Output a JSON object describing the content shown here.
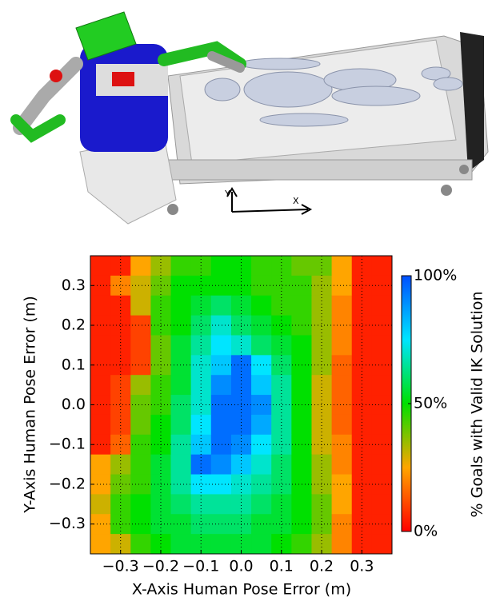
{
  "scene": {
    "x_axis": "X",
    "y_axis": "Y"
  },
  "chart_data": {
    "type": "heatmap",
    "xlabel": "X-Axis Human Pose Error (m)",
    "ylabel": "Y-Axis Human Pose Error (m)",
    "x": [
      -0.35,
      -0.3,
      -0.25,
      -0.2,
      -0.15,
      -0.1,
      -0.05,
      0,
      0.05,
      0.1,
      0.15,
      0.2,
      0.25,
      0.3,
      0.35
    ],
    "y": [
      0.35,
      0.3,
      0.25,
      0.2,
      0.15,
      0.1,
      0.05,
      0,
      -0.05,
      -0.1,
      -0.15,
      -0.2,
      -0.25,
      -0.3,
      -0.35
    ],
    "z": [
      [
        5,
        5,
        25,
        35,
        45,
        45,
        50,
        50,
        45,
        45,
        40,
        40,
        25,
        5,
        5
      ],
      [
        5,
        20,
        30,
        40,
        50,
        50,
        50,
        50,
        45,
        45,
        45,
        35,
        25,
        5,
        5
      ],
      [
        5,
        5,
        30,
        45,
        50,
        55,
        60,
        55,
        50,
        45,
        45,
        35,
        20,
        5,
        5
      ],
      [
        5,
        5,
        10,
        45,
        50,
        60,
        70,
        60,
        55,
        50,
        45,
        35,
        20,
        5,
        5
      ],
      [
        5,
        5,
        10,
        40,
        55,
        65,
        75,
        70,
        60,
        55,
        50,
        35,
        20,
        5,
        5
      ],
      [
        5,
        5,
        10,
        40,
        55,
        70,
        80,
        95,
        75,
        60,
        50,
        35,
        15,
        5,
        5
      ],
      [
        5,
        10,
        35,
        45,
        55,
        70,
        90,
        95,
        80,
        65,
        50,
        30,
        15,
        5,
        5
      ],
      [
        5,
        10,
        40,
        45,
        60,
        70,
        95,
        95,
        90,
        65,
        50,
        30,
        15,
        5,
        5
      ],
      [
        5,
        10,
        40,
        50,
        60,
        75,
        95,
        95,
        85,
        65,
        50,
        30,
        15,
        5,
        5
      ],
      [
        5,
        15,
        45,
        50,
        65,
        80,
        95,
        90,
        75,
        65,
        50,
        30,
        20,
        5,
        5
      ],
      [
        25,
        35,
        45,
        55,
        65,
        95,
        90,
        80,
        70,
        60,
        50,
        35,
        20,
        5,
        5
      ],
      [
        25,
        40,
        45,
        55,
        65,
        75,
        75,
        70,
        65,
        60,
        50,
        35,
        25,
        5,
        5
      ],
      [
        30,
        45,
        50,
        55,
        60,
        65,
        65,
        65,
        60,
        55,
        50,
        40,
        25,
        5,
        5
      ],
      [
        25,
        45,
        50,
        55,
        55,
        60,
        60,
        60,
        55,
        55,
        50,
        40,
        20,
        5,
        5
      ],
      [
        25,
        30,
        45,
        50,
        55,
        55,
        55,
        55,
        55,
        50,
        45,
        35,
        20,
        5,
        5
      ]
    ],
    "xlim": [
      -0.375,
      0.375
    ],
    "ylim": [
      -0.375,
      0.375
    ],
    "xticks": [
      {
        "value": -0.3,
        "label": "−0.3"
      },
      {
        "value": -0.2,
        "label": "−0.2"
      },
      {
        "value": -0.1,
        "label": "−0.1"
      },
      {
        "value": 0,
        "label": "0.0"
      },
      0.1,
      0.2,
      0.3
    ],
    "yticks": [
      {
        "value": -0.3,
        "label": "−0.3"
      },
      {
        "value": -0.2,
        "label": "−0.2"
      },
      {
        "value": -0.1,
        "label": "−0.1"
      },
      {
        "value": 0,
        "label": "0.0"
      },
      0.1,
      0.2,
      0.3
    ],
    "grid": true,
    "colormap": [
      "#ff0000",
      "#ffa500",
      "#00e000",
      "#00e5ff",
      "#0050ff"
    ],
    "colorbar": {
      "label": "% Goals with Valid IK Solution",
      "range": [
        0,
        100
      ],
      "ticks": [
        {
          "value": 0,
          "label": "0%"
        },
        {
          "value": 50,
          "label": "50%"
        },
        {
          "value": 100,
          "label": "100%"
        }
      ]
    }
  }
}
